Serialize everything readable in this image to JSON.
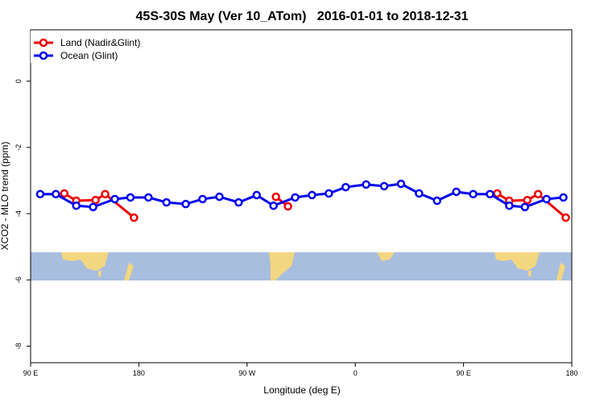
{
  "chart_data": {
    "type": "line",
    "title": "45S-30S May (Ver 10_ATom)   2016-01-01 to 2018-12-31",
    "x_label": "Longitude (deg E)",
    "y_label": "XCO2 - MLO trend (ppm)",
    "xlim": [
      90,
      540
    ],
    "ylim": [
      -8.5,
      1.55
    ],
    "xticks": [
      {
        "value": 90,
        "label": "90 E"
      },
      180,
      {
        "value": 270,
        "label": "90 W"
      },
      {
        "value": 360,
        "label": "0"
      },
      {
        "value": 450,
        "label": "90 E"
      },
      {
        "value": 540,
        "label": "180"
      }
    ],
    "yticks": [
      0,
      -2,
      -4,
      -6,
      -8
    ],
    "legend": "top-left",
    "series": [
      {
        "name": "Land (Nadir&Glint)",
        "color": "#ee0000",
        "x": [
          118,
          128,
          144,
          152,
          176,
          null,
          294,
          304,
          null,
          478,
          488,
          503,
          512,
          535
        ],
        "values": [
          -3.39,
          -3.61,
          -3.59,
          -3.41,
          -4.12,
          null,
          -3.49,
          -3.78,
          null,
          -3.39,
          -3.61,
          -3.59,
          -3.41,
          -4.12
        ]
      },
      {
        "name": "Ocean (Glint)",
        "color": "#0000ee",
        "x": [
          98,
          111,
          128,
          142,
          160,
          173,
          188,
          203,
          219,
          233,
          247,
          263,
          278,
          292,
          310,
          324,
          338,
          352,
          369,
          384,
          398,
          413,
          428,
          444,
          458,
          472,
          488,
          501,
          519,
          533
        ],
        "values": [
          -3.41,
          -3.41,
          -3.76,
          -3.8,
          -3.56,
          -3.51,
          -3.51,
          -3.66,
          -3.71,
          -3.56,
          -3.49,
          -3.66,
          -3.44,
          -3.76,
          -3.51,
          -3.44,
          -3.39,
          -3.2,
          -3.12,
          -3.17,
          -3.1,
          -3.39,
          -3.61,
          -3.34,
          -3.41,
          -3.41,
          -3.76,
          -3.8,
          -3.56,
          -3.51
        ]
      }
    ]
  }
}
